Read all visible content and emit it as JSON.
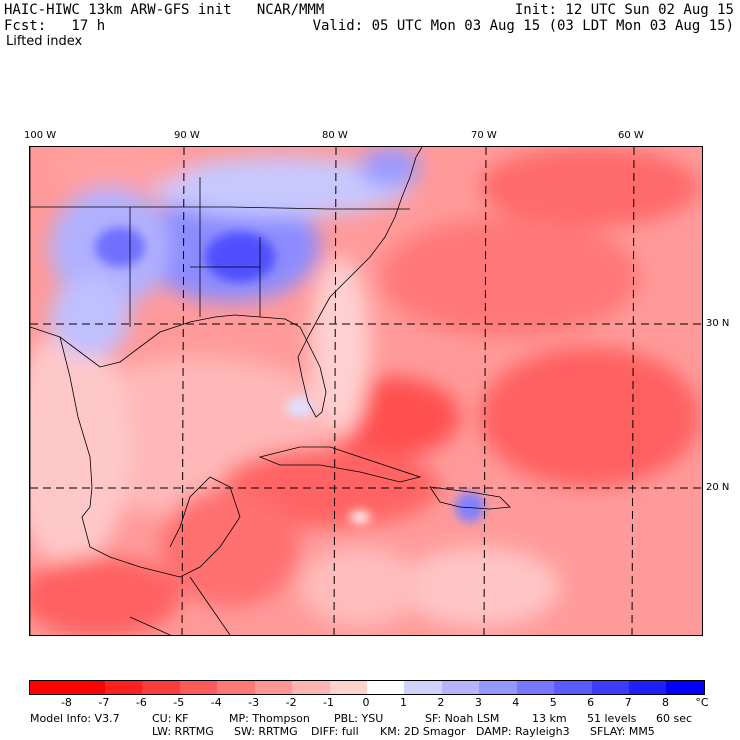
{
  "header": {
    "left_line1": "HAIC-HIWC 13km ARW-GFS init   NCAR/MMM",
    "left_line2": "Fcst:   17 h",
    "left_line3": "Lifted index",
    "right_line1": "Init: 12 UTC Sun 02 Aug 15",
    "right_line2": "Valid: 05 UTC Mon 03 Aug 15 (03 LDT Mon 03 Aug 15)"
  },
  "axes": {
    "lon_labels": [
      "100 W",
      "90 W",
      "80 W",
      "70 W",
      "60 W"
    ],
    "lat_labels": [
      "30 N",
      "20 N"
    ]
  },
  "legend": {
    "unit": "°C",
    "labels": [
      "-8",
      "-7",
      "-6",
      "-5",
      "-4",
      "-3",
      "-2",
      "-1",
      "0",
      "1",
      "2",
      "3",
      "4",
      "5",
      "6",
      "7",
      "8"
    ],
    "colors": [
      "#ff0000",
      "#ff2020",
      "#ff3c3c",
      "#ff5a5a",
      "#ff7878",
      "#ff9696",
      "#ffb4b4",
      "#ffd2d2",
      "#ffffff",
      "#d2d2ff",
      "#b4b4ff",
      "#9696ff",
      "#7878ff",
      "#5a5aff",
      "#3c3cff",
      "#2020ff",
      "#0000ff"
    ]
  },
  "footer": {
    "model_info": "Model Info: V3.7",
    "cu": "CU: KF",
    "mp": "MP: Thompson",
    "pbl": "PBL: YSU",
    "sf": "SF: Noah LSM",
    "res": "13 km",
    "levels": "51 levels",
    "dt": "60 sec",
    "lw": "LW: RRTMG",
    "sw": "SW: RRTMG",
    "diff": "DIFF: full",
    "km": "KM: 2D Smagor",
    "damp": "DAMP: Rayleigh3",
    "sflay": "SFLAY: MM5"
  }
}
